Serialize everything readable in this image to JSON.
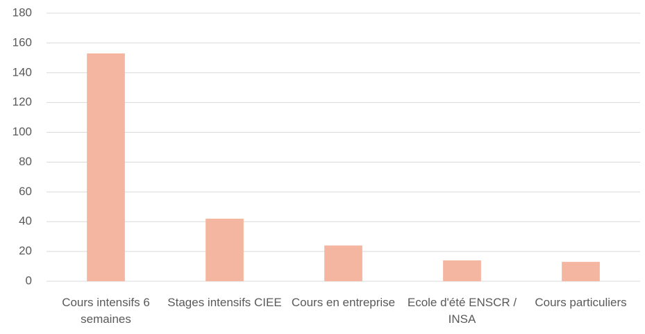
{
  "chart_data": {
    "type": "bar",
    "categories": [
      "Cours intensifs 6 semaines",
      "Stages intensifs CIEE",
      "Cours en entreprise",
      "Ecole d'été ENSCR / INSA",
      "Cours particuliers"
    ],
    "values": [
      153,
      42,
      24,
      14,
      13
    ],
    "color": "#f4b6a0",
    "ylim": [
      0,
      180
    ],
    "yticks": [
      0,
      20,
      40,
      60,
      80,
      100,
      120,
      140,
      160,
      180
    ],
    "grid": true
  }
}
